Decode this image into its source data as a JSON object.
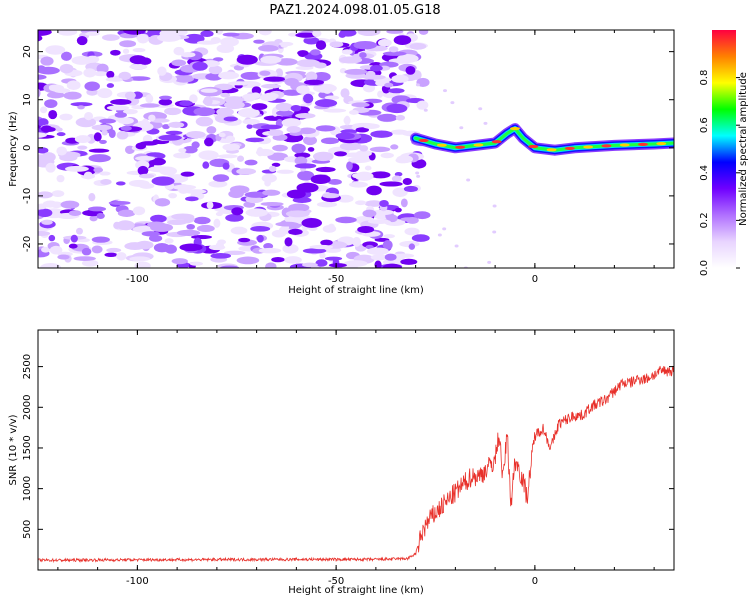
{
  "figure": {
    "title": "PAZ1.2024.098.01.05.G18"
  },
  "chart_data": [
    {
      "type": "heatmap",
      "xlabel": "Height of straight line (km)",
      "ylabel": "Frequency (Hz)",
      "xlim": [
        -125,
        35
      ],
      "ylim": [
        -25,
        24.5
      ],
      "x_ticks": [
        -100,
        -50,
        0
      ],
      "x_tick_labels": [
        "-100",
        "-50",
        "0"
      ],
      "y_ticks": [
        -20,
        -10,
        0,
        10,
        20
      ],
      "y_tick_labels": [
        "-20",
        "-10",
        "0",
        "10",
        "20"
      ],
      "noise_region_x": [
        -125,
        -30
      ],
      "signal_track": {
        "x": [
          -30,
          -25,
          -20,
          -15,
          -10,
          -7,
          -5,
          -3,
          0,
          5,
          10,
          20,
          30,
          35
        ],
        "freq": [
          2,
          0.8,
          0,
          0.5,
          1,
          3,
          4,
          2,
          0,
          -0.5,
          0,
          0.5,
          0.8,
          1
        ]
      },
      "colorbar": {
        "label": "Normalized spectral amplitude",
        "range": [
          0,
          1
        ],
        "ticks": [
          0.0,
          0.2,
          0.4,
          0.6,
          0.8
        ],
        "tick_labels": [
          "0.0",
          "0.2",
          "0.4",
          "0.6",
          "0.8"
        ],
        "colors": [
          "#ffffff",
          "#e8d4ff",
          "#b070ff",
          "#7000ff",
          "#0000ff",
          "#00ffff",
          "#00ff00",
          "#ffff00",
          "#ff8000",
          "#ff0040"
        ]
      }
    },
    {
      "type": "line",
      "xlabel": "Height of straight line (km)",
      "ylabel": "SNR (10 * v/v)",
      "xlim": [
        -125,
        35
      ],
      "ylim": [
        0,
        2950
      ],
      "x_ticks": [
        -100,
        -50,
        0
      ],
      "x_tick_labels": [
        "-100",
        "-50",
        "0"
      ],
      "y_ticks": [
        500,
        1000,
        1500,
        2000,
        2500
      ],
      "y_tick_labels": [
        "500",
        "1000",
        "1500",
        "2000",
        "2500"
      ],
      "series": [
        {
          "color": "#e8302a",
          "x": [
            -125,
            -100,
            -60,
            -40,
            -32,
            -30,
            -28,
            -26,
            -24,
            -22,
            -20,
            -18,
            -16,
            -14,
            -12,
            -10,
            -9,
            -8,
            -7,
            -6,
            -5,
            -4,
            -3,
            -2,
            0,
            2,
            4,
            6,
            8,
            10,
            12,
            14,
            16,
            18,
            20,
            22,
            24,
            26,
            28,
            30,
            32,
            34,
            35
          ],
          "y": [
            120,
            125,
            130,
            130,
            140,
            200,
            500,
            650,
            750,
            850,
            950,
            1050,
            1150,
            1150,
            1250,
            1350,
            1700,
            1100,
            1700,
            800,
            1350,
            1250,
            1100,
            900,
            1650,
            1750,
            1500,
            1800,
            1850,
            1900,
            1900,
            2000,
            2050,
            2100,
            2200,
            2300,
            2300,
            2350,
            2350,
            2400,
            2450,
            2450,
            2450
          ]
        }
      ]
    }
  ]
}
